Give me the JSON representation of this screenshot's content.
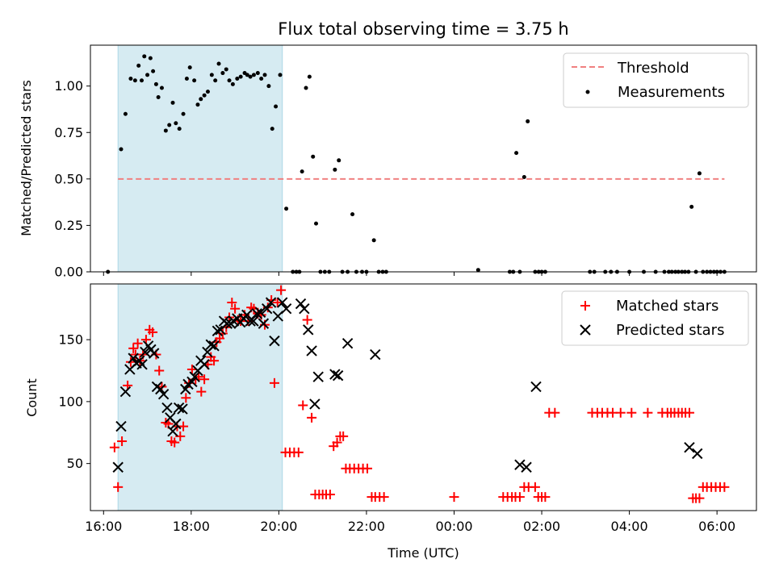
{
  "chart_data": [
    {
      "type": "scatter",
      "title": "Flux total observing time = 3.75 h",
      "xlabel": "",
      "ylabel": "Matched/Predicted stars",
      "xlim": [
        15.7,
        30.9
      ],
      "ylim": [
        0,
        1.22
      ],
      "yticks": [
        0.0,
        0.25,
        0.5,
        0.75,
        1.0
      ],
      "ytick_labels": [
        "0.00",
        "0.25",
        "0.50",
        "0.75",
        "1.00"
      ],
      "shaded_interval": [
        16.33,
        20.08
      ],
      "legend_position": "top-right",
      "colors": {
        "threshold": "#f08080",
        "measurements": "#000000",
        "shade": "#add8e6"
      },
      "series": [
        {
          "name": "Threshold",
          "kind": "dashed-line",
          "x": [
            16.33,
            30.17
          ],
          "y": [
            0.5,
            0.5
          ]
        },
        {
          "name": "Measurements",
          "kind": "points",
          "x": [
            16.1,
            16.4,
            16.5,
            16.62,
            16.72,
            16.8,
            16.87,
            16.93,
            17.0,
            17.07,
            17.13,
            17.2,
            17.25,
            17.33,
            17.42,
            17.5,
            17.58,
            17.65,
            17.73,
            17.82,
            17.9,
            17.97,
            18.07,
            18.15,
            18.22,
            18.3,
            18.38,
            18.47,
            18.55,
            18.63,
            18.72,
            18.8,
            18.87,
            18.95,
            19.05,
            19.13,
            19.22,
            19.28,
            19.35,
            19.43,
            19.52,
            19.6,
            19.68,
            19.77,
            19.85,
            19.93,
            20.03,
            20.17,
            20.32,
            20.4,
            20.47,
            20.53,
            20.62,
            20.7,
            20.78,
            20.85,
            20.95,
            21.05,
            21.15,
            21.28,
            21.37,
            21.45,
            21.57,
            21.68,
            21.77,
            21.9,
            22.0,
            22.17,
            22.28,
            22.37,
            22.45,
            24.55,
            25.27,
            25.35,
            25.42,
            25.5,
            25.6,
            25.68,
            25.85,
            25.93,
            26.0,
            26.08,
            27.1,
            27.2,
            27.45,
            27.58,
            27.72,
            28.0,
            28.33,
            28.6,
            28.8,
            28.9,
            28.97,
            29.05,
            29.12,
            29.2,
            29.27,
            29.35,
            29.42,
            29.52,
            29.6,
            29.68,
            29.77,
            29.85,
            29.93,
            30.0,
            30.08,
            30.17
          ],
          "y": [
            0,
            0.66,
            0.85,
            1.04,
            1.03,
            1.11,
            1.03,
            1.16,
            1.06,
            1.15,
            1.08,
            1.01,
            0.94,
            0.99,
            0.76,
            0.79,
            0.91,
            0.8,
            0.77,
            0.85,
            1.04,
            1.1,
            1.03,
            0.9,
            0.93,
            0.95,
            0.97,
            1.06,
            1.03,
            1.12,
            1.07,
            1.09,
            1.03,
            1.01,
            1.04,
            1.05,
            1.07,
            1.06,
            1.05,
            1.06,
            1.07,
            1.04,
            1.06,
            1.0,
            0.77,
            0.89,
            1.06,
            0.34,
            0,
            0,
            0,
            0.54,
            0.99,
            1.05,
            0.62,
            0.26,
            0,
            0,
            0,
            0.55,
            0.6,
            0,
            0,
            0.31,
            0,
            0,
            0,
            0.17,
            0,
            0,
            0,
            0.01,
            0,
            0,
            0.64,
            0,
            0.51,
            0.81,
            0,
            0,
            0,
            0,
            0,
            0,
            0,
            0,
            0,
            0,
            0,
            0,
            0,
            0,
            0,
            0,
            0,
            0,
            0,
            0,
            0.35,
            0,
            0.53,
            0,
            0,
            0,
            0,
            0,
            0,
            0
          ]
        }
      ]
    },
    {
      "type": "scatter",
      "title": "",
      "xlabel": "Time (UTC)",
      "ylabel": "Count",
      "xlim": [
        15.7,
        30.9
      ],
      "ylim": [
        12,
        195
      ],
      "yticks": [
        50,
        100,
        150
      ],
      "ytick_labels": [
        "50",
        "100",
        "150"
      ],
      "xticks": [
        16,
        18,
        20,
        22,
        24,
        26,
        28,
        30
      ],
      "xtick_labels": [
        "16:00",
        "18:00",
        "20:00",
        "22:00",
        "00:00",
        "02:00",
        "04:00",
        "06:00"
      ],
      "shaded_interval": [
        16.33,
        20.08
      ],
      "legend_position": "top-right",
      "colors": {
        "matched": "#ff0000",
        "predicted": "#000000",
        "shade": "#add8e6"
      },
      "series": [
        {
          "name": "Matched stars",
          "marker": "+",
          "x": [
            16.25,
            16.33,
            16.42,
            16.55,
            16.62,
            16.68,
            16.73,
            16.78,
            16.83,
            16.9,
            16.97,
            17.05,
            17.12,
            17.2,
            17.27,
            17.33,
            17.42,
            17.48,
            17.55,
            17.62,
            17.68,
            17.75,
            17.82,
            17.88,
            17.95,
            18.02,
            18.1,
            18.17,
            18.23,
            18.3,
            18.38,
            18.45,
            18.52,
            18.58,
            18.65,
            18.72,
            18.8,
            18.87,
            18.93,
            19.0,
            19.07,
            19.13,
            19.22,
            19.3,
            19.37,
            19.43,
            19.52,
            19.6,
            19.68,
            19.75,
            19.83,
            19.9,
            19.97,
            20.05,
            20.15,
            20.25,
            20.35,
            20.45,
            20.55,
            20.65,
            20.75,
            20.83,
            20.92,
            21.0,
            21.08,
            21.17,
            21.25,
            21.33,
            21.4,
            21.47,
            21.53,
            21.62,
            21.72,
            21.82,
            21.92,
            22.02,
            22.12,
            22.2,
            22.3,
            22.4,
            24.0,
            25.12,
            25.22,
            25.32,
            25.4,
            25.5,
            25.6,
            25.7,
            25.85,
            25.92,
            26.0,
            26.08,
            26.17,
            26.3,
            27.15,
            27.27,
            27.38,
            27.5,
            27.62,
            27.8,
            28.05,
            28.42,
            28.75,
            28.87,
            28.95,
            29.03,
            29.12,
            29.2,
            29.28,
            29.37,
            29.45,
            29.52,
            29.6,
            29.68,
            29.77,
            29.87,
            29.97,
            30.07,
            30.17
          ],
          "y": [
            63,
            31,
            68,
            113,
            132,
            143,
            138,
            147,
            133,
            138,
            150,
            158,
            156,
            138,
            125,
            112,
            83,
            82,
            68,
            67,
            80,
            72,
            80,
            103,
            115,
            126,
            118,
            120,
            108,
            118,
            130,
            136,
            133,
            148,
            151,
            155,
            160,
            168,
            180,
            175,
            166,
            165,
            170,
            165,
            176,
            175,
            171,
            170,
            162,
            176,
            182,
            115,
            180,
            190,
            59,
            59,
            59,
            59,
            97,
            166,
            87,
            25,
            25,
            25,
            25,
            25,
            64,
            67,
            72,
            72,
            46,
            46,
            46,
            46,
            46,
            46,
            23,
            23,
            23,
            23,
            23,
            23,
            23,
            23,
            23,
            23,
            31,
            31,
            31,
            23,
            23,
            23,
            91,
            91,
            91,
            91,
            91,
            91,
            91,
            91,
            91,
            91,
            91,
            91,
            91,
            91,
            91,
            91,
            91,
            91,
            22,
            22,
            22,
            31,
            31,
            31,
            31,
            31,
            31
          ]
        },
        {
          "name": "Predicted stars",
          "marker": "x",
          "x": [
            16.33,
            16.4,
            16.5,
            16.6,
            16.68,
            16.75,
            16.82,
            16.88,
            16.95,
            17.02,
            17.08,
            17.15,
            17.22,
            17.3,
            17.37,
            17.45,
            17.52,
            17.58,
            17.65,
            17.72,
            17.8,
            17.87,
            17.93,
            18.02,
            18.08,
            18.15,
            18.22,
            18.3,
            18.37,
            18.45,
            18.52,
            18.6,
            18.67,
            18.75,
            18.82,
            18.9,
            18.97,
            19.05,
            19.12,
            19.2,
            19.27,
            19.35,
            19.42,
            19.5,
            19.58,
            19.65,
            19.73,
            19.82,
            19.9,
            19.98,
            20.08,
            20.17,
            20.5,
            20.58,
            20.67,
            20.75,
            20.82,
            20.9,
            21.28,
            21.35,
            21.57,
            22.2,
            25.5,
            25.65,
            25.87,
            29.37,
            29.55
          ],
          "y": [
            47,
            80,
            108,
            126,
            135,
            131,
            133,
            130,
            140,
            145,
            142,
            139,
            112,
            110,
            106,
            95,
            87,
            76,
            82,
            95,
            94,
            110,
            114,
            116,
            120,
            125,
            133,
            130,
            140,
            146,
            145,
            157,
            158,
            165,
            163,
            163,
            165,
            167,
            164,
            167,
            170,
            165,
            165,
            171,
            172,
            163,
            175,
            180,
            149,
            169,
            180,
            175,
            179,
            175,
            158,
            141,
            98,
            120,
            122,
            121,
            147,
            138,
            49,
            47,
            112,
            63,
            58
          ]
        }
      ]
    }
  ]
}
